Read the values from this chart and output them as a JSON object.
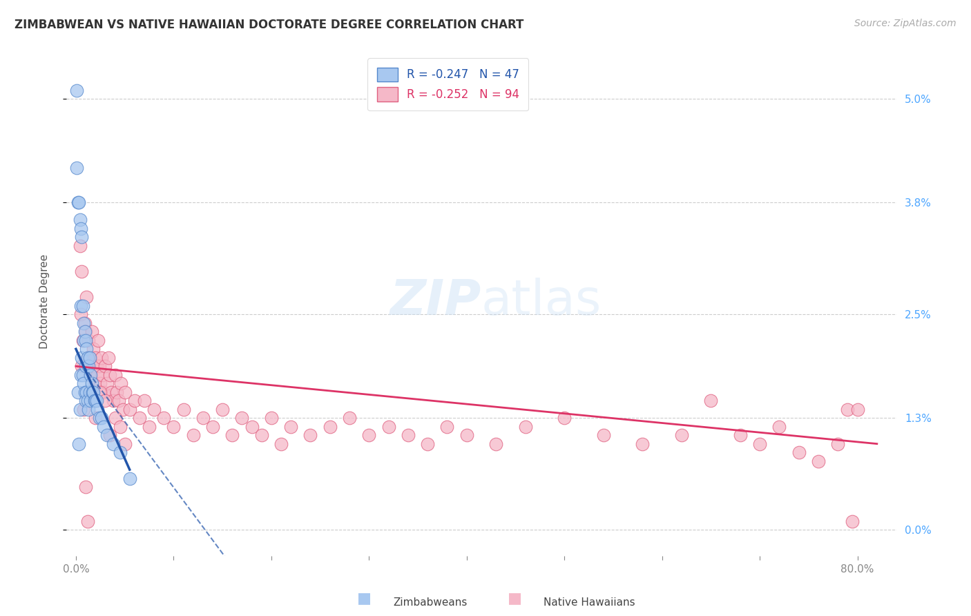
{
  "title": "ZIMBABWEAN VS NATIVE HAWAIIAN DOCTORATE DEGREE CORRELATION CHART",
  "source": "Source: ZipAtlas.com",
  "ylabel": "Doctorate Degree",
  "blue_R": -0.247,
  "blue_N": 47,
  "pink_R": -0.252,
  "pink_N": 94,
  "blue_color": "#a8c8f0",
  "pink_color": "#f5b8c8",
  "blue_edge_color": "#5588cc",
  "pink_edge_color": "#e06080",
  "blue_line_color": "#2255aa",
  "pink_line_color": "#dd3366",
  "legend_label_blue": "Zimbabweans",
  "legend_label_pink": "Native Hawaiians",
  "ytick_vals": [
    0.0,
    0.013,
    0.025,
    0.038,
    0.05
  ],
  "ytick_labels": [
    "0.0%",
    "1.3%",
    "2.5%",
    "3.8%",
    "5.0%"
  ],
  "xtick_vals": [
    0.0,
    0.1,
    0.2,
    0.3,
    0.4,
    0.5,
    0.6,
    0.7,
    0.8
  ],
  "xtick_labels": [
    "0.0%",
    "",
    "",
    "",
    "",
    "",
    "",
    "",
    "80.0%"
  ],
  "xlim": [
    -0.01,
    0.84
  ],
  "ylim": [
    -0.003,
    0.056
  ],
  "blue_x": [
    0.001,
    0.001,
    0.002,
    0.002,
    0.003,
    0.003,
    0.004,
    0.004,
    0.005,
    0.005,
    0.005,
    0.006,
    0.006,
    0.007,
    0.007,
    0.008,
    0.008,
    0.008,
    0.009,
    0.009,
    0.01,
    0.01,
    0.01,
    0.011,
    0.011,
    0.012,
    0.012,
    0.013,
    0.013,
    0.014,
    0.014,
    0.015,
    0.015,
    0.016,
    0.017,
    0.018,
    0.019,
    0.02,
    0.021,
    0.022,
    0.024,
    0.026,
    0.028,
    0.032,
    0.038,
    0.045,
    0.055
  ],
  "blue_y": [
    0.051,
    0.042,
    0.038,
    0.016,
    0.038,
    0.01,
    0.036,
    0.014,
    0.035,
    0.026,
    0.018,
    0.034,
    0.02,
    0.026,
    0.018,
    0.024,
    0.022,
    0.017,
    0.023,
    0.016,
    0.022,
    0.019,
    0.015,
    0.021,
    0.016,
    0.02,
    0.015,
    0.019,
    0.014,
    0.02,
    0.016,
    0.018,
    0.015,
    0.017,
    0.016,
    0.016,
    0.015,
    0.015,
    0.015,
    0.014,
    0.013,
    0.013,
    0.012,
    0.011,
    0.01,
    0.009,
    0.006
  ],
  "pink_x": [
    0.004,
    0.005,
    0.006,
    0.007,
    0.008,
    0.009,
    0.01,
    0.011,
    0.012,
    0.013,
    0.014,
    0.015,
    0.016,
    0.017,
    0.018,
    0.019,
    0.02,
    0.021,
    0.022,
    0.023,
    0.024,
    0.025,
    0.026,
    0.027,
    0.028,
    0.03,
    0.032,
    0.033,
    0.035,
    0.036,
    0.038,
    0.04,
    0.042,
    0.044,
    0.046,
    0.048,
    0.05,
    0.055,
    0.06,
    0.065,
    0.07,
    0.075,
    0.08,
    0.09,
    0.1,
    0.11,
    0.12,
    0.13,
    0.14,
    0.15,
    0.16,
    0.17,
    0.18,
    0.19,
    0.2,
    0.21,
    0.22,
    0.24,
    0.26,
    0.28,
    0.3,
    0.32,
    0.34,
    0.36,
    0.38,
    0.4,
    0.43,
    0.46,
    0.5,
    0.54,
    0.58,
    0.62,
    0.65,
    0.68,
    0.7,
    0.72,
    0.74,
    0.76,
    0.78,
    0.79,
    0.795,
    0.8,
    0.025,
    0.03,
    0.035,
    0.04,
    0.045,
    0.05,
    0.015,
    0.02,
    0.01,
    0.012,
    0.008,
    0.006
  ],
  "pink_y": [
    0.033,
    0.025,
    0.03,
    0.022,
    0.019,
    0.024,
    0.023,
    0.027,
    0.02,
    0.022,
    0.018,
    0.02,
    0.023,
    0.019,
    0.021,
    0.017,
    0.02,
    0.019,
    0.018,
    0.022,
    0.019,
    0.017,
    0.02,
    0.018,
    0.016,
    0.019,
    0.017,
    0.02,
    0.018,
    0.016,
    0.015,
    0.018,
    0.016,
    0.015,
    0.017,
    0.014,
    0.016,
    0.014,
    0.015,
    0.013,
    0.015,
    0.012,
    0.014,
    0.013,
    0.012,
    0.014,
    0.011,
    0.013,
    0.012,
    0.014,
    0.011,
    0.013,
    0.012,
    0.011,
    0.013,
    0.01,
    0.012,
    0.011,
    0.012,
    0.013,
    0.011,
    0.012,
    0.011,
    0.01,
    0.012,
    0.011,
    0.01,
    0.012,
    0.013,
    0.011,
    0.01,
    0.011,
    0.015,
    0.011,
    0.01,
    0.012,
    0.009,
    0.008,
    0.01,
    0.014,
    0.001,
    0.014,
    0.016,
    0.015,
    0.011,
    0.013,
    0.012,
    0.01,
    0.016,
    0.013,
    0.005,
    0.001,
    0.014,
    0.019
  ]
}
